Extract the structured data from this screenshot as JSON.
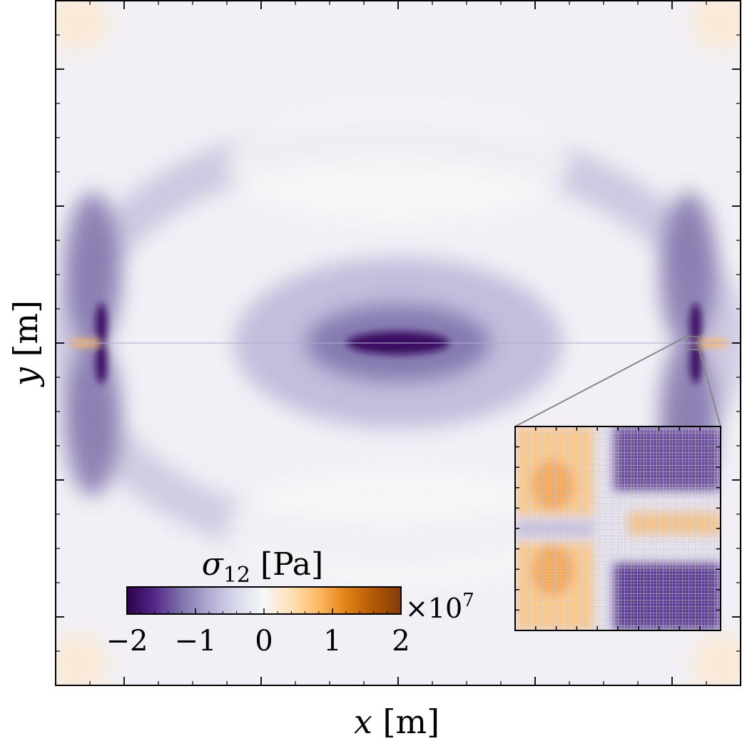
{
  "chart_data": {
    "type": "heatmap",
    "title": "",
    "xlabel": "x [m]",
    "ylabel": "y [m]",
    "xlabel_parts": {
      "var": "x",
      "unit": "[m]"
    },
    "ylabel_parts": {
      "var": "y",
      "unit": "[m]"
    },
    "colorbar": {
      "label": "σ12 [Pa]",
      "label_parts": {
        "symbol": "σ",
        "subscript": "12",
        "unit": "[Pa]"
      },
      "ticks": [
        -2,
        -1,
        0,
        1,
        2
      ],
      "tick_labels": [
        "−2",
        "−1",
        "0",
        "1",
        "2"
      ],
      "range": [
        -2,
        2
      ],
      "multiplier": "×10",
      "multiplier_exponent": "7",
      "colormap": "PuOr_r",
      "colors": [
        "#2d004b",
        "#542788",
        "#8073ac",
        "#b2abd2",
        "#d8daeb",
        "#f7f7f7",
        "#fee0b6",
        "#fdb863",
        "#e08214",
        "#b35806",
        "#7f3b08"
      ],
      "location": "lower-left"
    },
    "inset": {
      "location": "lower-right",
      "description_ref": "zoom of right crack tip region"
    },
    "grid": false
  }
}
